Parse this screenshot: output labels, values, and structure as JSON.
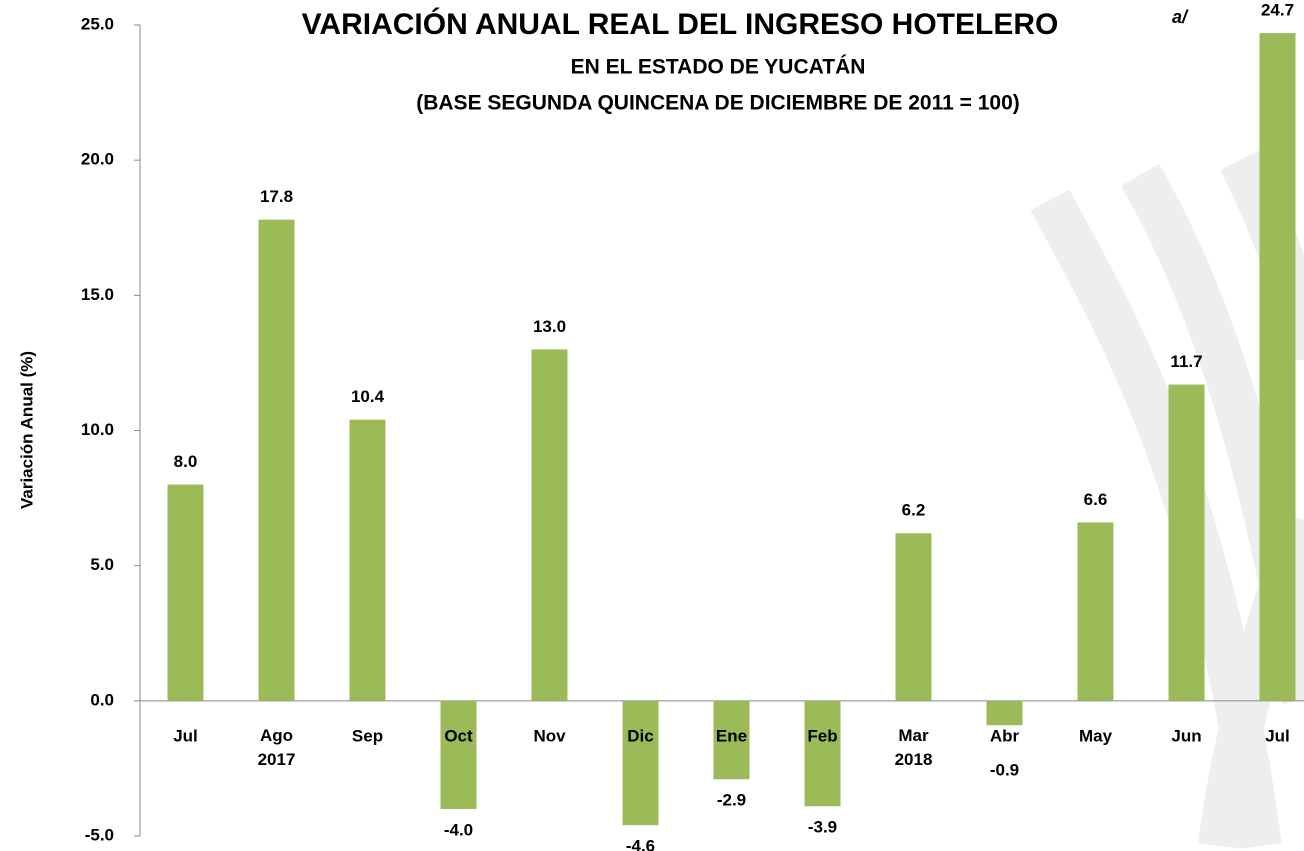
{
  "chart_data": {
    "type": "bar",
    "title": "VARIACIÓN ANUAL REAL DEL INGRESO HOTELERO",
    "title_note": "a/",
    "subtitle": [
      "EN EL ESTADO DE YUCATÁN",
      "(BASE SEGUNDA QUINCENA DE DICIEMBRE DE 2011 = 100)"
    ],
    "y_label": "Variación  Anual  (%)",
    "categories": [
      "Jul",
      "Ago 2017",
      "Sep",
      "Oct",
      "Nov",
      "Dic",
      "Ene",
      "Feb",
      "Mar 2018",
      "Abr",
      "May",
      "Jun",
      "Jul"
    ],
    "values": [
      8.0,
      17.8,
      10.4,
      -4.0,
      13.0,
      -4.6,
      -2.9,
      -3.9,
      6.2,
      -0.9,
      6.6,
      11.7,
      24.7
    ],
    "value_labels": [
      "8.0",
      "17.8",
      "10.4",
      "-4.0",
      "13.0",
      "-4.6",
      "-2.9",
      "-3.9",
      "6.2",
      "-0.9",
      "6.6",
      "11.7",
      "24.7"
    ],
    "color": "#9bbb59",
    "ylim": [
      -5,
      25
    ],
    "yticks": [
      {
        "value": -5,
        "label": "-5.0"
      },
      {
        "value": 0,
        "label": "0.0"
      },
      {
        "value": 5,
        "label": "5.0"
      },
      {
        "value": 10,
        "label": "10.0"
      },
      {
        "value": 15,
        "label": "15.0"
      },
      {
        "value": 20,
        "label": "20.0"
      },
      {
        "value": 25,
        "label": "25.0"
      }
    ],
    "grid": false
  }
}
